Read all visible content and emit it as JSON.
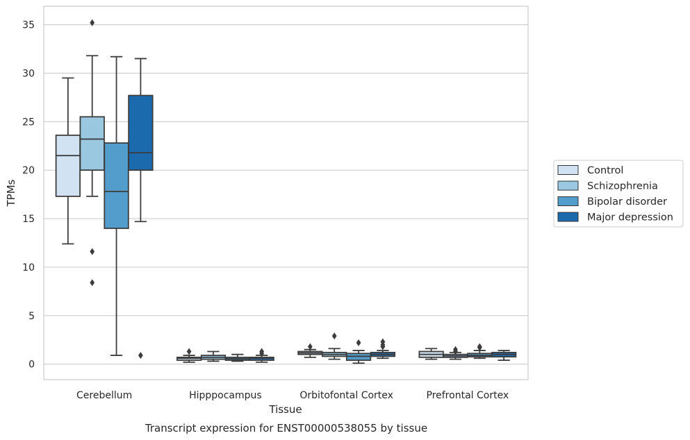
{
  "chart_data": {
    "type": "box",
    "title": "",
    "caption": "Transcript expression for ENST00000538055 by tissue",
    "xlabel": "Tissue",
    "ylabel": "TPMs",
    "ylim": [
      -1.6,
      36.9
    ],
    "yticks": [
      0,
      5,
      10,
      15,
      20,
      25,
      30,
      35
    ],
    "grid": true,
    "legend_position": "right",
    "categories": [
      "Cerebellum",
      "Hipppocampus",
      "Orbitofontal Cortex",
      "Prefrontal Cortex"
    ],
    "series": [
      {
        "name": "Control",
        "color": "#d1e2f2",
        "boxes": [
          {
            "whislo": 12.4,
            "q1": 17.3,
            "med": 21.5,
            "q3": 23.6,
            "whishi": 29.5,
            "fliers": []
          },
          {
            "whislo": 0.2,
            "q1": 0.4,
            "med": 0.6,
            "q3": 0.7,
            "whishi": 0.9,
            "fliers": [
              1.3
            ]
          },
          {
            "whislo": 0.7,
            "q1": 1.0,
            "med": 1.15,
            "q3": 1.3,
            "whishi": 1.5,
            "fliers": [
              1.8
            ]
          },
          {
            "whislo": 0.5,
            "q1": 0.7,
            "med": 1.0,
            "q3": 1.3,
            "whishi": 1.6,
            "fliers": []
          }
        ]
      },
      {
        "name": "Schizophrenia",
        "color": "#9ac8e0",
        "boxes": [
          {
            "whislo": 17.3,
            "q1": 20.0,
            "med": 23.2,
            "q3": 25.5,
            "whishi": 31.8,
            "fliers": [
              35.2,
              11.6,
              8.4
            ]
          },
          {
            "whislo": 0.3,
            "q1": 0.5,
            "med": 0.7,
            "q3": 0.9,
            "whishi": 1.3,
            "fliers": []
          },
          {
            "whislo": 0.5,
            "q1": 0.8,
            "med": 1.0,
            "q3": 1.2,
            "whishi": 1.6,
            "fliers": [
              2.9
            ]
          },
          {
            "whislo": 0.5,
            "q1": 0.7,
            "med": 0.85,
            "q3": 1.0,
            "whishi": 1.2,
            "fliers": [
              1.5,
              1.3
            ]
          }
        ]
      },
      {
        "name": "Bipolar disorder",
        "color": "#529dcc",
        "boxes": [
          {
            "whislo": 0.9,
            "q1": 14.0,
            "med": 17.8,
            "q3": 22.8,
            "whishi": 31.7,
            "fliers": []
          },
          {
            "whislo": 0.3,
            "q1": 0.4,
            "med": 0.55,
            "q3": 0.7,
            "whishi": 1.0,
            "fliers": []
          },
          {
            "whislo": 0.1,
            "q1": 0.4,
            "med": 0.8,
            "q3": 1.1,
            "whishi": 1.4,
            "fliers": [
              2.2
            ]
          },
          {
            "whislo": 0.6,
            "q1": 0.75,
            "med": 0.9,
            "q3": 1.1,
            "whishi": 1.4,
            "fliers": [
              1.7,
              1.8
            ]
          }
        ]
      },
      {
        "name": "Major depression",
        "color": "#1c6aae",
        "boxes": [
          {
            "whislo": 14.7,
            "q1": 20.0,
            "med": 21.8,
            "q3": 27.7,
            "whishi": 31.5,
            "fliers": [
              0.9
            ]
          },
          {
            "whislo": 0.2,
            "q1": 0.4,
            "med": 0.6,
            "q3": 0.7,
            "whishi": 0.9,
            "fliers": [
              1.3,
              1.1
            ]
          },
          {
            "whislo": 0.6,
            "q1": 0.8,
            "med": 1.0,
            "q3": 1.2,
            "whishi": 1.4,
            "fliers": [
              1.8,
              2.0,
              2.3
            ]
          },
          {
            "whislo": 0.4,
            "q1": 0.75,
            "med": 1.0,
            "q3": 1.2,
            "whishi": 1.4,
            "fliers": []
          }
        ]
      }
    ]
  }
}
